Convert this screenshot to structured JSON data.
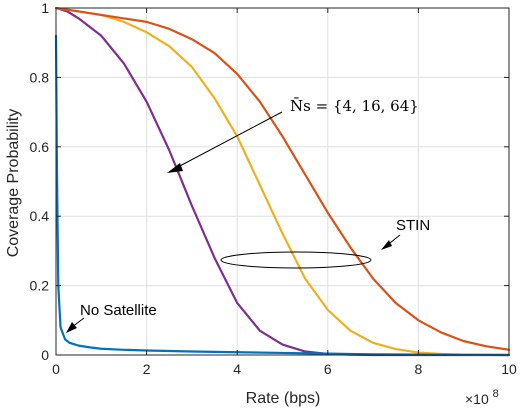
{
  "chart_data": {
    "type": "line",
    "title": "",
    "xlabel": "Rate (bps)",
    "ylabel": "Coverage Probability",
    "x_multiplier_label": "×10",
    "x_multiplier_exp": "8",
    "xlim": [
      0,
      10
    ],
    "ylim": [
      0,
      1
    ],
    "xticks": [
      "0",
      "2",
      "4",
      "6",
      "8",
      "10"
    ],
    "yticks": [
      "0",
      "0.2",
      "0.4",
      "0.6",
      "0.8",
      "1"
    ],
    "grid": true,
    "annotations": {
      "nsats": "N̄s = {4, 16, 64}",
      "stin": "STIN",
      "no_satellite": "No Satellite"
    },
    "series": [
      {
        "color": "#7E2F8E",
        "x": [
          0,
          0.25,
          0.5,
          1,
          1.5,
          2,
          2.5,
          3,
          3.5,
          4,
          4.5,
          5,
          5.5,
          6,
          6.5,
          7,
          10
        ],
        "y": [
          1.0,
          0.99,
          0.97,
          0.92,
          0.84,
          0.73,
          0.59,
          0.43,
          0.28,
          0.15,
          0.07,
          0.03,
          0.01,
          0.003,
          0.001,
          0.0,
          0.0
        ]
      },
      {
        "color": "#EDB120",
        "x": [
          0,
          0.5,
          1,
          1.5,
          2,
          2.5,
          3,
          3.5,
          4,
          4.5,
          5,
          5.5,
          6,
          6.5,
          7,
          7.5,
          8,
          8.5,
          9,
          10
        ],
        "y": [
          1.0,
          0.99,
          0.98,
          0.96,
          0.93,
          0.89,
          0.83,
          0.74,
          0.63,
          0.49,
          0.35,
          0.22,
          0.13,
          0.07,
          0.035,
          0.017,
          0.007,
          0.003,
          0.001,
          0.0
        ]
      },
      {
        "color": "#D95319",
        "x": [
          0,
          0.5,
          1,
          1.5,
          2,
          2.5,
          3,
          3.5,
          4,
          4.5,
          5,
          5.5,
          6,
          6.5,
          7,
          7.5,
          8,
          8.5,
          9,
          9.5,
          10
        ],
        "y": [
          1.0,
          0.99,
          0.98,
          0.97,
          0.96,
          0.94,
          0.91,
          0.87,
          0.81,
          0.73,
          0.63,
          0.52,
          0.41,
          0.31,
          0.22,
          0.15,
          0.1,
          0.065,
          0.04,
          0.025,
          0.015
        ]
      },
      {
        "color": "#0072BD",
        "x": [
          0,
          0.02,
          0.05,
          0.1,
          0.2,
          0.3,
          0.5,
          0.75,
          1,
          1.5,
          2,
          3,
          4,
          5,
          6,
          7,
          8,
          9,
          10
        ],
        "y": [
          0.92,
          0.55,
          0.2,
          0.08,
          0.045,
          0.035,
          0.027,
          0.022,
          0.018,
          0.015,
          0.013,
          0.01,
          0.008,
          0.006,
          0.004,
          0.002,
          0.001,
          0.0005,
          0.0
        ]
      }
    ]
  }
}
